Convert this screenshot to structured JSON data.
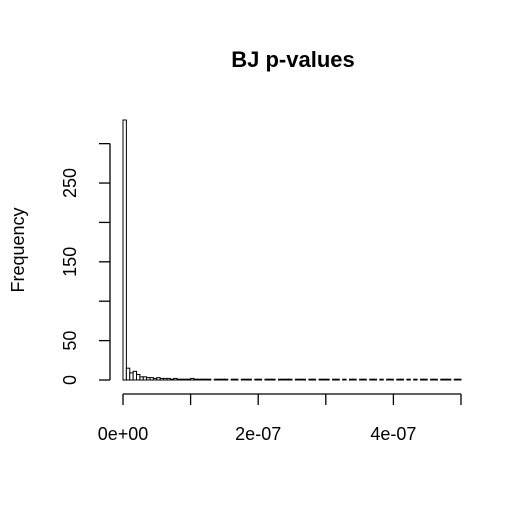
{
  "chart_data": {
    "type": "bar",
    "title": "BJ p-values",
    "xlabel": "",
    "ylabel": "Frequency",
    "x_ticks": [
      0,
      1e-07,
      2e-07,
      3e-07,
      4e-07,
      5e-07
    ],
    "x_tick_labels": [
      "0e+00",
      "2e-07",
      "4e-07"
    ],
    "x_tick_labels_at": [
      0,
      2e-07,
      4e-07
    ],
    "y_ticks": [
      0,
      50,
      100,
      150,
      200,
      250,
      300
    ],
    "y_tick_labels": [
      "0",
      "50",
      "150",
      "250"
    ],
    "y_tick_labels_at": [
      0,
      50,
      150,
      250
    ],
    "xlim": [
      0,
      5e-07
    ],
    "ylim": [
      0,
      330
    ],
    "bin_width": 5e-09,
    "values": [
      330,
      15,
      9,
      11,
      7,
      4,
      4,
      3,
      3,
      2,
      3,
      2,
      2,
      2,
      1,
      2,
      1,
      1,
      1,
      1,
      2,
      1,
      1,
      1,
      1,
      1,
      0,
      1,
      1,
      1,
      1,
      0,
      1,
      1,
      0,
      1,
      1,
      1,
      0,
      1,
      1,
      0,
      1,
      1,
      1,
      0,
      1,
      1,
      1,
      1,
      0,
      1,
      1,
      1,
      0,
      1,
      1,
      0,
      1,
      1,
      1,
      0,
      1,
      1,
      0,
      1,
      0,
      1,
      1,
      0,
      1,
      1,
      0,
      1,
      1,
      0,
      1,
      0,
      1,
      1,
      0,
      1,
      1,
      0,
      1,
      0,
      1,
      0,
      1,
      1,
      0,
      1,
      1,
      0,
      1,
      1,
      1,
      0,
      1,
      1
    ]
  }
}
